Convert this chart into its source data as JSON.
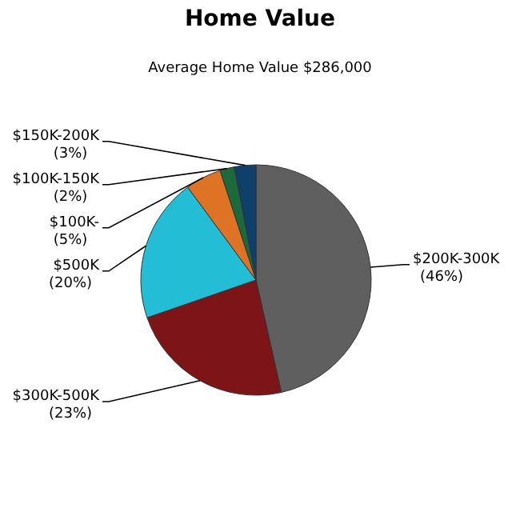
{
  "chart_data": {
    "type": "pie",
    "title": "Home Value",
    "subtitle": "Average Home Value  $286,000",
    "categories": [
      "$200K-300K",
      "$300K-500K",
      "$500K",
      "$100K-",
      "$100K-150K",
      "$150K-200K"
    ],
    "values": [
      46,
      23,
      20,
      5,
      2,
      3
    ],
    "value_labels": [
      "(46%)",
      "(23%)",
      "(20%)",
      "(5%)",
      "(2%)",
      "(3%)"
    ],
    "colors": [
      "#5f5f5f",
      "#7d1417",
      "#23bdd6",
      "#df7325",
      "#1c6a3c",
      "#0f3f6b"
    ]
  }
}
